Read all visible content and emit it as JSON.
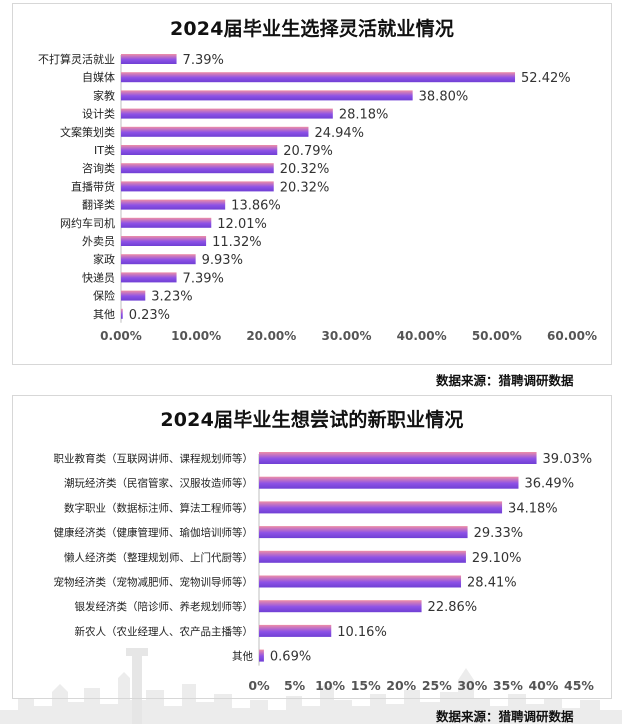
{
  "charts": [
    {
      "title": "2024届毕业生选择灵活就业情况",
      "source": "数据来源：猎聘调研数据"
    },
    {
      "title": "2024届毕业生想尝试的新职业情况",
      "source": "数据来源：猎聘调研数据"
    }
  ],
  "chart_data": [
    {
      "type": "bar",
      "orientation": "horizontal",
      "title": "2024届毕业生选择灵活就业情况",
      "categories": [
        "不打算灵活就业",
        "自媒体",
        "家教",
        "设计类",
        "文案策划类",
        "IT类",
        "咨询类",
        "直播带货",
        "翻译类",
        "网约车司机",
        "外卖员",
        "家政",
        "快递员",
        "保险",
        "其他"
      ],
      "values": [
        7.39,
        52.42,
        38.8,
        28.18,
        24.94,
        20.79,
        20.32,
        20.32,
        13.86,
        12.01,
        11.32,
        9.93,
        7.39,
        3.23,
        0.23
      ],
      "value_labels": [
        "7.39%",
        "52.42%",
        "38.80%",
        "28.18%",
        "24.94%",
        "20.79%",
        "20.32%",
        "20.32%",
        "13.86%",
        "12.01%",
        "11.32%",
        "9.93%",
        "7.39%",
        "3.23%",
        "0.23%"
      ],
      "xlim": [
        0,
        60
      ],
      "xticks": [
        "0.00%",
        "10.00%",
        "20.00%",
        "30.00%",
        "40.00%",
        "50.00%",
        "60.00%"
      ],
      "grid": false,
      "colors": {
        "bar_start": "#8e52e6",
        "bar_end": "#ee8ea6"
      }
    },
    {
      "type": "bar",
      "orientation": "horizontal",
      "title": "2024届毕业生想尝试的新职业情况",
      "categories": [
        "职业教育类（互联网讲师、课程规划师等）",
        "潮玩经济类（民宿管家、汉服妆造师等）",
        "数字职业（数据标注师、算法工程师等）",
        "健康经济类（健康管理师、瑜伽培训师等）",
        "懒人经济类（整理规划师、上门代厨等）",
        "宠物经济类（宠物减肥师、宠物训导师等）",
        "银发经济类（陪诊师、养老规划师等）",
        "新农人（农业经理人、农产品主播等）",
        "其他"
      ],
      "values": [
        39.03,
        36.49,
        34.18,
        29.33,
        29.1,
        28.41,
        22.86,
        10.16,
        0.69
      ],
      "value_labels": [
        "39.03%",
        "36.49%",
        "34.18%",
        "29.33%",
        "29.10%",
        "28.41%",
        "22.86%",
        "10.16%",
        "0.69%"
      ],
      "xlim": [
        0,
        45
      ],
      "xticks": [
        "0%",
        "5%",
        "10%",
        "15%",
        "20%",
        "25%",
        "30%",
        "35%",
        "40%",
        "45%"
      ],
      "grid": false,
      "colors": {
        "bar_start": "#8e52e6",
        "bar_end": "#ee8ea6"
      }
    }
  ]
}
